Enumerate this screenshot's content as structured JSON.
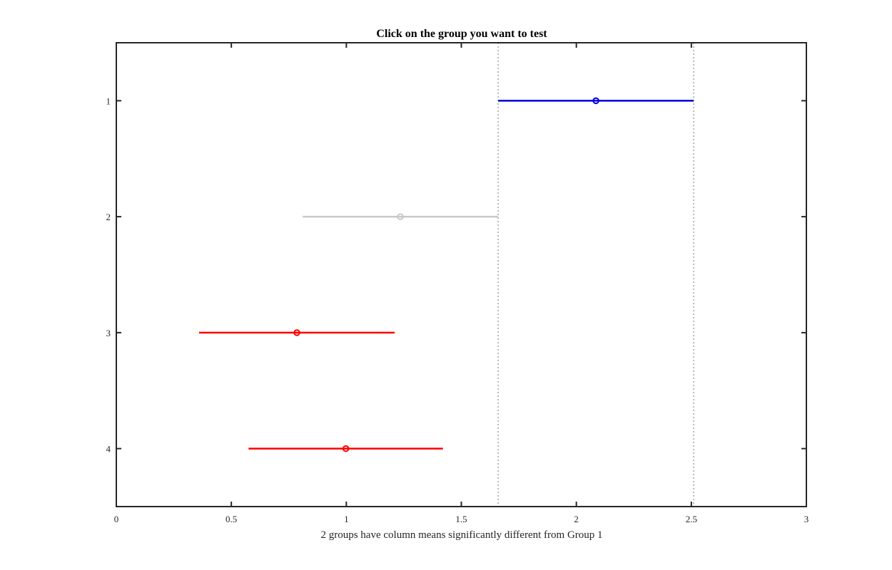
{
  "chart_data": {
    "type": "interval",
    "title": "Click on the group you want to test",
    "xlabel": "2 groups have column means significantly different from Group 1",
    "ylabel": "",
    "xlim": [
      0,
      3
    ],
    "ylim": [
      0.5,
      4.5
    ],
    "y_reversed": true,
    "x_ticks": [
      0,
      0.5,
      1,
      1.5,
      2,
      2.5,
      3
    ],
    "x_tick_labels": [
      "0",
      "0.5",
      "1",
      "1.5",
      "2",
      "2.5",
      "3"
    ],
    "y_ticks": [
      1,
      2,
      3,
      4
    ],
    "y_tick_labels": [
      "1",
      "2",
      "3",
      "4"
    ],
    "grid": false,
    "reference_lines": {
      "x": [
        1.66,
        2.51
      ],
      "color": "#aaaaaa",
      "style": "dotted"
    },
    "groups": [
      {
        "group": 1,
        "mean": 2.085,
        "lower": 1.66,
        "upper": 2.51,
        "color": "#0000dd",
        "status": "selected"
      },
      {
        "group": 2,
        "mean": 1.235,
        "lower": 0.81,
        "upper": 1.66,
        "color": "#c8c8c8",
        "status": "not significant"
      },
      {
        "group": 3,
        "mean": 0.785,
        "lower": 0.36,
        "upper": 1.21,
        "color": "#ff0000",
        "status": "significantly different"
      },
      {
        "group": 4,
        "mean": 0.998,
        "lower": 0.575,
        "upper": 1.42,
        "color": "#ff0000",
        "status": "significantly different"
      }
    ],
    "axis_color": "#262626"
  }
}
